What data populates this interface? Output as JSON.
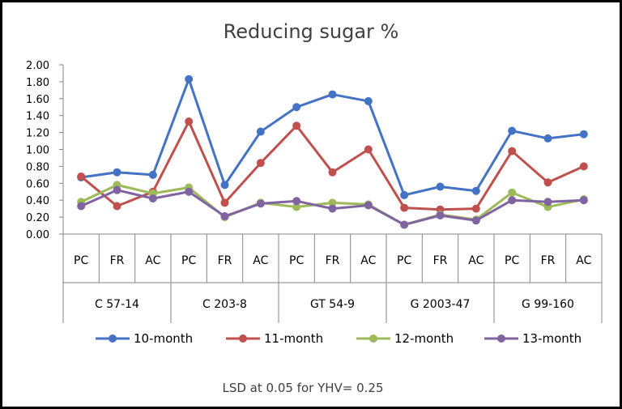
{
  "chart_data": {
    "type": "line",
    "title": "Reducing sugar %",
    "xlabel": "",
    "ylabel": "",
    "ylim": [
      0,
      2
    ],
    "yticks": [
      "0.00",
      "0.20",
      "0.40",
      "0.60",
      "0.80",
      "1.00",
      "1.20",
      "1.40",
      "1.60",
      "1.80",
      "2.00"
    ],
    "groups": [
      "C 57-14",
      "C 203-8",
      "GT 54-9",
      "G 2003-47",
      "G 99-160"
    ],
    "subcategories": [
      "PC",
      "FR",
      "AC"
    ],
    "grid": false,
    "legend_position": "bottom",
    "series": [
      {
        "name": "10-month",
        "color": "#4472C4",
        "values": [
          0.67,
          0.73,
          0.7,
          1.83,
          0.58,
          1.21,
          1.5,
          1.65,
          1.57,
          0.46,
          0.56,
          0.51,
          1.22,
          1.13,
          1.18
        ]
      },
      {
        "name": "11-month",
        "color": "#C0504D",
        "values": [
          0.68,
          0.33,
          0.5,
          1.33,
          0.37,
          0.84,
          1.28,
          0.73,
          1.0,
          0.31,
          0.29,
          0.3,
          0.98,
          0.61,
          0.8
        ]
      },
      {
        "name": "12-month",
        "color": "#9BBB59",
        "values": [
          0.38,
          0.58,
          0.48,
          0.55,
          0.2,
          0.37,
          0.32,
          0.37,
          0.35,
          0.11,
          0.23,
          0.17,
          0.49,
          0.32,
          0.41
        ]
      },
      {
        "name": "13-month",
        "color": "#8064A2",
        "values": [
          0.33,
          0.52,
          0.42,
          0.5,
          0.21,
          0.36,
          0.39,
          0.3,
          0.34,
          0.11,
          0.22,
          0.16,
          0.4,
          0.38,
          0.4
        ]
      }
    ],
    "annotation": "LSD at 0.05 for YHV= 0.25"
  }
}
